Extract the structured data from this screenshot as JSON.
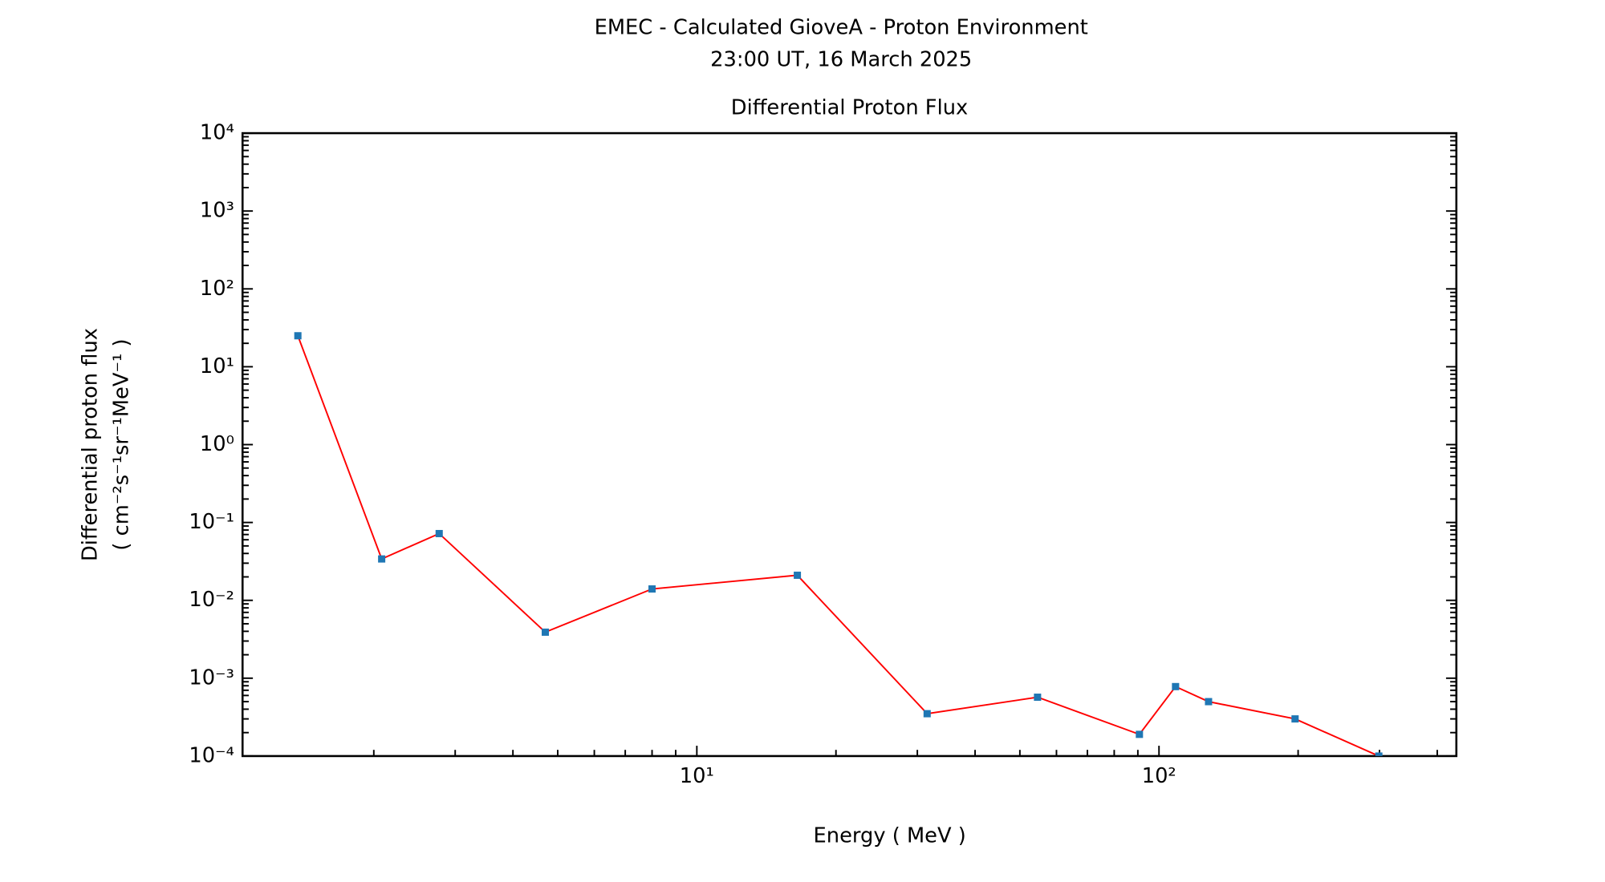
{
  "chart_data": {
    "type": "line",
    "title": "EMEC - Calculated GioveA - Proton Environment",
    "subtitle": "23:00 UT, 16 March 2025",
    "plot_title": "Differential Proton Flux",
    "x_label": "Energy ( MeV )",
    "y_label": [
      "Differential proton flux",
      "( cm⁻²s⁻¹sr⁻¹MeV⁻¹ )"
    ],
    "x": [
      1.37,
      2.08,
      2.77,
      4.7,
      8.0,
      16.5,
      31.5,
      54.6,
      90.7,
      108.6,
      128,
      197,
      299
    ],
    "values": [
      25,
      0.034,
      0.072,
      0.0039,
      0.014,
      0.021,
      0.00035,
      0.00057,
      0.00019,
      0.00078,
      0.0005,
      0.0003,
      0.0001
    ],
    "color": "#ff0000",
    "marker_color": "#1f77b4",
    "xscale": "log",
    "yscale": "log",
    "xlim": [
      1.04,
      440
    ],
    "ylim": [
      0.0001,
      10000
    ],
    "xticks": [
      {
        "value": 10,
        "label": "10¹"
      },
      {
        "value": 100,
        "label": "10²"
      }
    ],
    "xticks_minor": [
      2,
      3,
      4,
      5,
      6,
      7,
      8,
      9,
      20,
      30,
      40,
      50,
      60,
      70,
      80,
      90,
      200,
      300,
      400
    ],
    "yticks": [
      {
        "value": 0.0001,
        "label": "10⁻⁴"
      },
      {
        "value": 0.001,
        "label": "10⁻³"
      },
      {
        "value": 0.01,
        "label": "10⁻²"
      },
      {
        "value": 0.1,
        "label": "10⁻¹"
      },
      {
        "value": 1,
        "label": "10⁰"
      },
      {
        "value": 10,
        "label": "10¹"
      },
      {
        "value": 100,
        "label": "10²"
      },
      {
        "value": 1000,
        "label": "10³"
      },
      {
        "value": 10000,
        "label": "10⁴"
      }
    ],
    "yticks_minor": [
      0.0002,
      0.0003,
      0.0004,
      0.0005,
      0.0006,
      0.0007,
      0.0008,
      0.0009,
      0.002,
      0.003,
      0.004,
      0.005,
      0.006,
      0.007,
      0.008,
      0.009,
      0.02,
      0.03,
      0.04,
      0.05,
      0.06,
      0.07,
      0.08,
      0.09,
      0.2,
      0.3,
      0.4,
      0.5,
      0.6,
      0.7,
      0.8,
      0.9,
      2,
      3,
      4,
      5,
      6,
      7,
      8,
      9,
      20,
      30,
      40,
      50,
      60,
      70,
      80,
      90,
      200,
      300,
      400,
      500,
      600,
      700,
      800,
      900,
      2000,
      3000,
      4000,
      5000,
      6000,
      7000,
      8000,
      9000
    ]
  }
}
